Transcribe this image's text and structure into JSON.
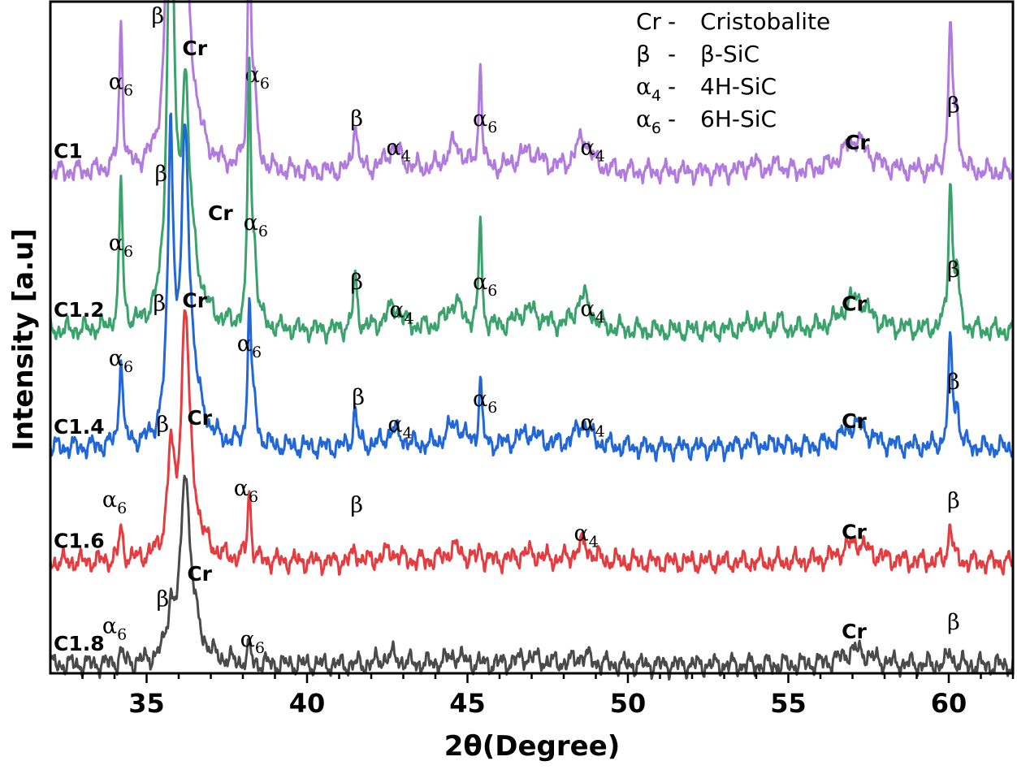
{
  "chart_data": {
    "type": "line",
    "xlabel": "2θ(Degree)",
    "ylabel": "Intensity [a.u]",
    "xlim": [
      32,
      62
    ],
    "ylim": [
      0,
      1
    ],
    "x_ticks": [
      "35",
      "40",
      "45",
      "50",
      "55",
      "60"
    ],
    "x_tick_values": [
      35,
      40,
      45,
      50,
      55,
      60
    ],
    "grid": false,
    "legend_position": "top-right",
    "legend": [
      {
        "symbol": "Cr",
        "sym_sub": "",
        "dash": "-",
        "desc": "Cristobalite"
      },
      {
        "symbol": "β",
        "sym_sub": "",
        "dash": "-",
        "desc": "β-SiC"
      },
      {
        "symbol": "α",
        "sym_sub": "4",
        "dash": "-",
        "desc": "4H-SiC"
      },
      {
        "symbol": "α",
        "sym_sub": "6",
        "dash": "-",
        "desc": "6H-SiC"
      }
    ],
    "series": [
      {
        "name": "C1",
        "color": "#b07adf",
        "offset": 0.745,
        "scale": 1.0,
        "peaks": [
          [
            34.2,
            0.22,
            0.06
          ],
          [
            35.75,
            0.23,
            0.06
          ],
          [
            35.75,
            0.55,
            0.13
          ],
          [
            36.2,
            0.24,
            0.12
          ],
          [
            36.3,
            0.12,
            0.35
          ],
          [
            38.2,
            0.38,
            0.055
          ],
          [
            38.35,
            0.1,
            0.1
          ],
          [
            41.5,
            0.08,
            0.07
          ],
          [
            42.7,
            0.035,
            0.3
          ],
          [
            44.6,
            0.04,
            0.3
          ],
          [
            45.4,
            0.17,
            0.05
          ],
          [
            46.9,
            0.03,
            0.45
          ],
          [
            48.6,
            0.05,
            0.28
          ],
          [
            53.9,
            0.012,
            0.3
          ],
          [
            54.7,
            0.02,
            0.06
          ],
          [
            57.1,
            0.05,
            0.5
          ],
          [
            60.05,
            0.22,
            0.07
          ],
          [
            60.25,
            0.08,
            0.08
          ]
        ],
        "labels": [
          {
            "text": "α",
            "sub": "6",
            "x": 34.2,
            "y": 0.87
          },
          {
            "text": "β",
            "sub": "",
            "x": 35.35,
            "y": 0.968
          },
          {
            "text": "Cr",
            "sub": "",
            "x": 36.5,
            "y": 0.92,
            "bold": true
          },
          {
            "text": "α",
            "sub": "6",
            "x": 38.45,
            "y": 0.88
          },
          {
            "text": "β",
            "sub": "",
            "x": 41.55,
            "y": 0.815
          },
          {
            "text": "α",
            "sub": "4",
            "x": 42.85,
            "y": 0.772
          },
          {
            "text": "α",
            "sub": "6",
            "x": 45.55,
            "y": 0.815
          },
          {
            "text": "α",
            "sub": "4",
            "x": 48.9,
            "y": 0.772
          },
          {
            "text": "Cr",
            "sub": "",
            "x": 57.15,
            "y": 0.78,
            "bold": true
          },
          {
            "text": "β",
            "sub": "",
            "x": 60.15,
            "y": 0.835
          }
        ]
      },
      {
        "name": "C1.2",
        "color": "#3aa36c",
        "offset": 0.509,
        "scale": 1.0,
        "peaks": [
          [
            34.2,
            0.22,
            0.06
          ],
          [
            35.75,
            0.23,
            0.06
          ],
          [
            35.75,
            0.55,
            0.13
          ],
          [
            36.2,
            0.24,
            0.12
          ],
          [
            36.3,
            0.12,
            0.35
          ],
          [
            38.2,
            0.38,
            0.055
          ],
          [
            38.35,
            0.1,
            0.1
          ],
          [
            41.5,
            0.08,
            0.07
          ],
          [
            42.7,
            0.035,
            0.3
          ],
          [
            44.6,
            0.04,
            0.3
          ],
          [
            45.4,
            0.17,
            0.05
          ],
          [
            46.9,
            0.03,
            0.45
          ],
          [
            48.6,
            0.05,
            0.28
          ],
          [
            53.9,
            0.012,
            0.3
          ],
          [
            54.7,
            0.02,
            0.06
          ],
          [
            57.1,
            0.05,
            0.5
          ],
          [
            60.05,
            0.22,
            0.07
          ],
          [
            60.25,
            0.08,
            0.08
          ]
        ],
        "labels": [
          {
            "text": "α",
            "sub": "6",
            "x": 34.2,
            "y": 0.63
          },
          {
            "text": "β",
            "sub": "",
            "x": 35.45,
            "y": 0.733
          },
          {
            "text": "Cr",
            "sub": "",
            "x": 37.3,
            "y": 0.675,
            "bold": true
          },
          {
            "text": "α",
            "sub": "6",
            "x": 38.4,
            "y": 0.66
          },
          {
            "text": "β",
            "sub": "",
            "x": 41.55,
            "y": 0.572
          },
          {
            "text": "α",
            "sub": "4",
            "x": 42.95,
            "y": 0.53
          },
          {
            "text": "α",
            "sub": "6",
            "x": 45.55,
            "y": 0.572
          },
          {
            "text": "α",
            "sub": "4",
            "x": 48.9,
            "y": 0.532
          },
          {
            "text": "Cr",
            "sub": "",
            "x": 57.05,
            "y": 0.54,
            "bold": true
          },
          {
            "text": "β",
            "sub": "",
            "x": 60.15,
            "y": 0.59
          }
        ]
      },
      {
        "name": "C1.4",
        "color": "#2167d8",
        "offset": 0.335,
        "scale": 0.7,
        "peaks": [
          [
            34.2,
            0.2,
            0.06
          ],
          [
            35.75,
            0.45,
            0.12
          ],
          [
            35.75,
            0.2,
            0.06
          ],
          [
            36.2,
            0.55,
            0.14
          ],
          [
            36.35,
            0.12,
            0.35
          ],
          [
            38.2,
            0.3,
            0.055
          ],
          [
            38.35,
            0.08,
            0.1
          ],
          [
            41.5,
            0.08,
            0.07
          ],
          [
            42.7,
            0.035,
            0.3
          ],
          [
            44.6,
            0.05,
            0.3
          ],
          [
            45.4,
            0.15,
            0.05
          ],
          [
            46.9,
            0.03,
            0.45
          ],
          [
            48.6,
            0.05,
            0.28
          ],
          [
            53.9,
            0.012,
            0.3
          ],
          [
            54.7,
            0.015,
            0.06
          ],
          [
            57.1,
            0.05,
            0.5
          ],
          [
            60.05,
            0.22,
            0.07
          ],
          [
            60.25,
            0.08,
            0.08
          ]
        ],
        "labels": [
          {
            "text": "α",
            "sub": "6",
            "x": 34.2,
            "y": 0.458
          },
          {
            "text": "β",
            "sub": "",
            "x": 35.4,
            "y": 0.54
          },
          {
            "text": "Cr",
            "sub": "",
            "x": 36.5,
            "y": 0.545,
            "bold": true
          },
          {
            "text": "α",
            "sub": "6",
            "x": 38.2,
            "y": 0.48
          },
          {
            "text": "β",
            "sub": "",
            "x": 41.6,
            "y": 0.4
          },
          {
            "text": "α",
            "sub": "4",
            "x": 42.9,
            "y": 0.36
          },
          {
            "text": "α",
            "sub": "6",
            "x": 45.55,
            "y": 0.398
          },
          {
            "text": "α",
            "sub": "4",
            "x": 48.9,
            "y": 0.362
          },
          {
            "text": "Cr",
            "sub": "",
            "x": 57.05,
            "y": 0.365,
            "bold": true
          },
          {
            "text": "β",
            "sub": "",
            "x": 60.15,
            "y": 0.423
          }
        ]
      },
      {
        "name": "C1.6",
        "color": "#e43c3f",
        "offset": 0.165,
        "scale": 0.5,
        "peaks": [
          [
            34.2,
            0.1,
            0.06
          ],
          [
            35.75,
            0.28,
            0.12
          ],
          [
            36.2,
            0.62,
            0.14
          ],
          [
            36.35,
            0.15,
            0.35
          ],
          [
            38.2,
            0.22,
            0.055
          ],
          [
            41.5,
            0.04,
            0.07
          ],
          [
            42.6,
            0.03,
            0.3
          ],
          [
            44.6,
            0.04,
            0.3
          ],
          [
            45.4,
            0.04,
            0.05
          ],
          [
            46.9,
            0.025,
            0.45
          ],
          [
            48.6,
            0.05,
            0.28
          ],
          [
            57.1,
            0.06,
            0.5
          ],
          [
            60.05,
            0.12,
            0.07
          ]
        ],
        "labels": [
          {
            "text": "α",
            "sub": "6",
            "x": 34.0,
            "y": 0.248
          },
          {
            "text": "β",
            "sub": "",
            "x": 35.5,
            "y": 0.36
          },
          {
            "text": "Cr",
            "sub": "",
            "x": 36.65,
            "y": 0.37,
            "bold": true
          },
          {
            "text": "α",
            "sub": "6",
            "x": 38.1,
            "y": 0.265
          },
          {
            "text": "β",
            "sub": "",
            "x": 41.55,
            "y": 0.24
          },
          {
            "text": "α",
            "sub": "4",
            "x": 48.7,
            "y": 0.198
          },
          {
            "text": "Cr",
            "sub": "",
            "x": 57.05,
            "y": 0.2,
            "bold": true
          },
          {
            "text": "β",
            "sub": "",
            "x": 60.15,
            "y": 0.246
          }
        ]
      },
      {
        "name": "C1.8",
        "color": "#4a4a4a",
        "offset": 0.012,
        "scale": 0.45,
        "peaks": [
          [
            34.2,
            0.04,
            0.06
          ],
          [
            35.75,
            0.15,
            0.12
          ],
          [
            36.2,
            0.52,
            0.15
          ],
          [
            36.35,
            0.15,
            0.35
          ],
          [
            38.2,
            0.05,
            0.055
          ],
          [
            42.6,
            0.03,
            0.3
          ],
          [
            44.6,
            0.03,
            0.3
          ],
          [
            46.9,
            0.025,
            0.45
          ],
          [
            48.6,
            0.03,
            0.28
          ],
          [
            57.1,
            0.05,
            0.5
          ],
          [
            60.05,
            0.05,
            0.07
          ]
        ],
        "labels": [
          {
            "text": "α",
            "sub": "6",
            "x": 34.0,
            "y": 0.06
          },
          {
            "text": "β",
            "sub": "",
            "x": 35.5,
            "y": 0.1
          },
          {
            "text": "Cr",
            "sub": "",
            "x": 36.65,
            "y": 0.138,
            "bold": true
          },
          {
            "text": "α",
            "sub": "6",
            "x": 38.3,
            "y": 0.04
          },
          {
            "text": "Cr",
            "sub": "",
            "x": 57.05,
            "y": 0.052,
            "bold": true
          },
          {
            "text": "β",
            "sub": "",
            "x": 60.15,
            "y": 0.065
          }
        ]
      }
    ]
  }
}
